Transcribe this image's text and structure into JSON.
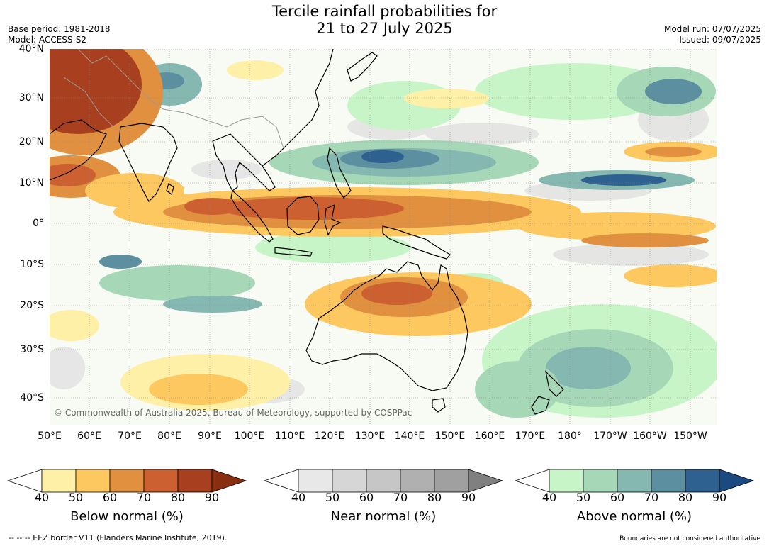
{
  "title": "Tercile rainfall probabilities for\n21 to 27 July 2025",
  "base_period": "Base period: 1981-2018",
  "model": "Model: ACCESS-S2",
  "model_run": "Model run: 07/07/2025",
  "issued": "Issued: 09/07/2025",
  "copyright": "© Commonwealth of Australia 2025, Bureau of Meteorology, supported by COSPPac",
  "lat_labels": [
    "40°N",
    "30°N",
    "20°N",
    "10°N",
    "0°",
    "10°S",
    "20°S",
    "30°S",
    "40°S"
  ],
  "lon_labels": [
    "50°E",
    "60°E",
    "70°E",
    "80°E",
    "90°E",
    "100°E",
    "110°E",
    "120°E",
    "130°E",
    "140°E",
    "150°E",
    "160°E",
    "170°E",
    "180°",
    "170°W",
    "160°W",
    "150°W"
  ],
  "colorbars": [
    {
      "label": "Below normal (%)",
      "ticks": [
        "40",
        "50",
        "60",
        "70",
        "80",
        "90"
      ],
      "colors": [
        "#fff0a8",
        "#fdc860",
        "#e0903f",
        "#cc6030",
        "#a84020",
        "#8a2e12"
      ]
    },
    {
      "label": "Near normal (%)",
      "ticks": [
        "40",
        "50",
        "60",
        "70",
        "80",
        "90"
      ],
      "colors": [
        "#e8e8e8",
        "#d6d6d6",
        "#c6c6c6",
        "#b0b0b0",
        "#a0a0a0",
        "#808080"
      ]
    },
    {
      "label": "Above normal (%)",
      "ticks": [
        "40",
        "50",
        "60",
        "70",
        "80",
        "90"
      ],
      "colors": [
        "#c8f5c8",
        "#a6d8b8",
        "#84b8b0",
        "#5c90a0",
        "#2e6090",
        "#1a4a80"
      ]
    }
  ],
  "footer_left": "--  --  -- EEZ border V11 (Flanders Marine Institute, 2019).",
  "footer_right": "Boundaries are not considered authoritative"
}
